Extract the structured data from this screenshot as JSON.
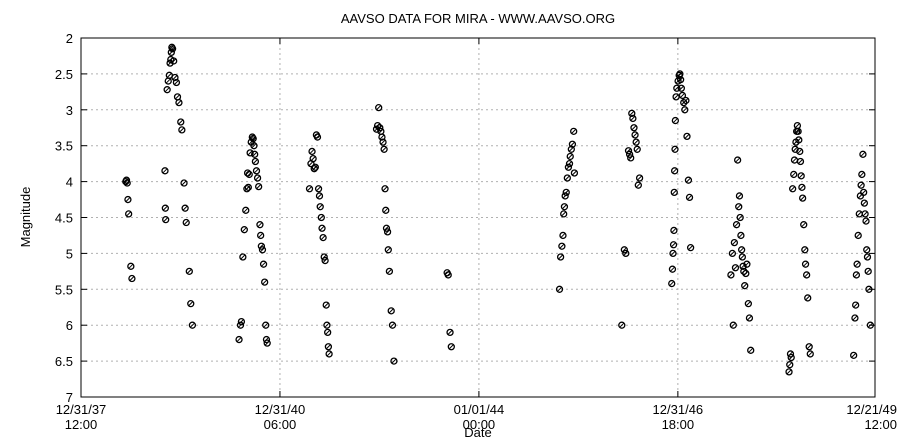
{
  "chart_data": {
    "type": "scatter",
    "title": "AAVSO DATA FOR MIRA - WWW.AAVSO.ORG",
    "xlabel": "Date",
    "ylabel": "Magnitude",
    "y_inverted": true,
    "ylim": [
      7,
      2
    ],
    "yticks": [
      2,
      2.5,
      3,
      3.5,
      4,
      4.5,
      5,
      5.5,
      6,
      6.5,
      7
    ],
    "xlim": [
      "1937-12-31T12:00",
      "1949-12-21T12:00"
    ],
    "xticks": [
      {
        "x": "1937-12-31T12:00",
        "label_top": "12/31/37",
        "label_bottom": "12:00"
      },
      {
        "x": "1940-12-31T06:00",
        "label_top": "12/31/40",
        "label_bottom": "06:00"
      },
      {
        "x": "1944-01-01T00:00",
        "label_top": "01/01/44",
        "label_bottom": "00:00"
      },
      {
        "x": "1946-12-31T18:00",
        "label_top": "12/31/46",
        "label_bottom": "18:00"
      },
      {
        "x": "1949-12-21T12:00",
        "label_top": "12/21/49",
        "label_bottom": "12:00"
      }
    ],
    "grid": true,
    "marker_color": "#000000",
    "series": [
      {
        "points": [
          [
            "1938-09-04",
            4.0
          ],
          [
            "1938-09-08",
            3.98
          ],
          [
            "1938-09-12",
            4.02
          ],
          [
            "1938-09-16",
            4.25
          ],
          [
            "1938-09-20",
            4.45
          ],
          [
            "1938-10-02",
            5.18
          ],
          [
            "1938-10-08",
            5.35
          ],
          [
            "1939-04-08",
            3.85
          ],
          [
            "1939-04-10",
            4.37
          ],
          [
            "1939-04-12",
            4.53
          ],
          [
            "1939-04-20",
            2.72
          ],
          [
            "1939-04-26",
            2.6
          ],
          [
            "1939-05-02",
            2.52
          ],
          [
            "1939-05-06",
            2.35
          ],
          [
            "1939-05-10",
            2.3
          ],
          [
            "1939-05-13",
            2.2
          ],
          [
            "1939-05-16",
            2.13
          ],
          [
            "1939-05-20",
            2.15
          ],
          [
            "1939-05-26",
            2.32
          ],
          [
            "1939-06-02",
            2.55
          ],
          [
            "1939-06-10",
            2.62
          ],
          [
            "1939-06-16",
            2.82
          ],
          [
            "1939-06-24",
            2.9
          ],
          [
            "1939-07-04",
            3.17
          ],
          [
            "1939-07-10",
            3.28
          ],
          [
            "1939-07-22",
            4.02
          ],
          [
            "1939-07-28",
            4.37
          ],
          [
            "1939-08-03",
            4.57
          ],
          [
            "1939-08-20",
            5.25
          ],
          [
            "1939-08-28",
            5.7
          ],
          [
            "1939-09-06",
            6.0
          ],
          [
            "1940-05-20",
            6.2
          ],
          [
            "1940-05-28",
            6.0
          ],
          [
            "1940-06-02",
            5.95
          ],
          [
            "1940-06-10",
            5.05
          ],
          [
            "1940-06-18",
            4.67
          ],
          [
            "1940-06-26",
            4.4
          ],
          [
            "1940-07-02",
            4.1
          ],
          [
            "1940-07-06",
            3.88
          ],
          [
            "1940-07-10",
            4.08
          ],
          [
            "1940-07-15",
            3.9
          ],
          [
            "1940-07-20",
            3.6
          ],
          [
            "1940-07-26",
            3.45
          ],
          [
            "1940-08-01",
            3.38
          ],
          [
            "1940-08-06",
            3.4
          ],
          [
            "1940-08-10",
            3.5
          ],
          [
            "1940-08-14",
            3.62
          ],
          [
            "1940-08-18",
            3.72
          ],
          [
            "1940-08-24",
            3.85
          ],
          [
            "1940-08-30",
            3.95
          ],
          [
            "1940-09-05",
            4.07
          ],
          [
            "1940-09-12",
            4.6
          ],
          [
            "1940-09-16",
            4.75
          ],
          [
            "1940-09-20",
            4.9
          ],
          [
            "1940-09-26",
            4.95
          ],
          [
            "1940-10-02",
            5.15
          ],
          [
            "1940-10-08",
            5.4
          ],
          [
            "1940-10-14",
            6.0
          ],
          [
            "1940-10-18",
            6.2
          ],
          [
            "1940-10-22",
            6.25
          ],
          [
            "1941-06-12",
            4.1
          ],
          [
            "1941-06-20",
            3.75
          ],
          [
            "1941-06-26",
            3.58
          ],
          [
            "1941-07-02",
            3.68
          ],
          [
            "1941-07-08",
            3.82
          ],
          [
            "1941-07-14",
            3.8
          ],
          [
            "1941-07-20",
            3.35
          ],
          [
            "1941-07-26",
            3.38
          ],
          [
            "1941-08-01",
            4.1
          ],
          [
            "1941-08-06",
            4.2
          ],
          [
            "1941-08-10",
            4.35
          ],
          [
            "1941-08-16",
            4.5
          ],
          [
            "1941-08-20",
            4.65
          ],
          [
            "1941-08-26",
            4.78
          ],
          [
            "1941-09-01",
            5.05
          ],
          [
            "1941-09-06",
            5.1
          ],
          [
            "1941-09-12",
            5.72
          ],
          [
            "1941-09-16",
            6.0
          ],
          [
            "1941-09-20",
            6.1
          ],
          [
            "1941-09-24",
            6.3
          ],
          [
            "1941-09-28",
            6.4
          ],
          [
            "1942-06-16",
            3.27
          ],
          [
            "1942-06-22",
            3.22
          ],
          [
            "1942-06-28",
            2.97
          ],
          [
            "1942-07-04",
            3.25
          ],
          [
            "1942-07-10",
            3.3
          ],
          [
            "1942-07-16",
            3.38
          ],
          [
            "1942-07-22",
            3.45
          ],
          [
            "1942-07-28",
            3.55
          ],
          [
            "1942-08-02",
            4.1
          ],
          [
            "1942-08-06",
            4.4
          ],
          [
            "1942-08-10",
            4.65
          ],
          [
            "1942-08-16",
            4.7
          ],
          [
            "1942-08-20",
            4.95
          ],
          [
            "1942-08-26",
            5.25
          ],
          [
            "1942-09-05",
            5.8
          ],
          [
            "1942-09-12",
            6.0
          ],
          [
            "1942-09-20",
            6.5
          ],
          [
            "1943-07-10",
            5.27
          ],
          [
            "1943-07-16",
            5.3
          ],
          [
            "1943-07-26",
            6.1
          ],
          [
            "1943-08-02",
            6.3
          ],
          [
            "1945-03-20",
            5.5
          ],
          [
            "1945-03-26",
            5.05
          ],
          [
            "1945-04-02",
            4.9
          ],
          [
            "1945-04-08",
            4.75
          ],
          [
            "1945-04-12",
            4.45
          ],
          [
            "1945-04-16",
            4.35
          ],
          [
            "1945-04-20",
            4.2
          ],
          [
            "1945-04-26",
            4.15
          ],
          [
            "1945-05-02",
            3.95
          ],
          [
            "1945-05-08",
            3.8
          ],
          [
            "1945-05-14",
            3.75
          ],
          [
            "1945-05-18",
            3.65
          ],
          [
            "1945-05-24",
            3.55
          ],
          [
            "1945-05-30",
            3.48
          ],
          [
            "1945-06-06",
            3.3
          ],
          [
            "1945-06-10",
            3.88
          ],
          [
            "1946-02-26",
            6.0
          ],
          [
            "1946-03-12",
            4.95
          ],
          [
            "1946-03-20",
            5.0
          ],
          [
            "1946-04-04",
            3.57
          ],
          [
            "1946-04-10",
            3.62
          ],
          [
            "1946-04-16",
            3.67
          ],
          [
            "1946-04-22",
            3.05
          ],
          [
            "1946-04-28",
            3.12
          ],
          [
            "1946-05-04",
            3.25
          ],
          [
            "1946-05-10",
            3.35
          ],
          [
            "1946-05-16",
            3.45
          ],
          [
            "1946-05-22",
            3.55
          ],
          [
            "1946-05-28",
            4.05
          ],
          [
            "1946-06-04",
            3.95
          ],
          [
            "1946-11-28",
            5.42
          ],
          [
            "1946-12-02",
            5.22
          ],
          [
            "1946-12-05",
            5.0
          ],
          [
            "1946-12-08",
            4.88
          ],
          [
            "1946-12-10",
            4.68
          ],
          [
            "1946-12-12",
            4.15
          ],
          [
            "1946-12-14",
            3.85
          ],
          [
            "1946-12-16",
            3.55
          ],
          [
            "1946-12-18",
            3.15
          ],
          [
            "1946-12-22",
            2.82
          ],
          [
            "1946-12-26",
            2.7
          ],
          [
            "1947-01-02",
            2.6
          ],
          [
            "1947-01-08",
            2.52
          ],
          [
            "1947-01-12",
            2.5
          ],
          [
            "1947-01-16",
            2.58
          ],
          [
            "1947-01-20",
            2.7
          ],
          [
            "1947-01-26",
            2.8
          ],
          [
            "1947-02-02",
            2.9
          ],
          [
            "1947-02-08",
            3.0
          ],
          [
            "1947-02-14",
            2.87
          ],
          [
            "1947-02-20",
            3.37
          ],
          [
            "1947-02-28",
            3.98
          ],
          [
            "1947-03-06",
            4.22
          ],
          [
            "1947-03-12",
            4.92
          ],
          [
            "1947-10-20",
            5.3
          ],
          [
            "1947-10-28",
            5.0
          ],
          [
            "1947-11-02",
            6.0
          ],
          [
            "1947-11-08",
            4.85
          ],
          [
            "1947-11-14",
            5.2
          ],
          [
            "1947-11-20",
            4.6
          ],
          [
            "1947-11-26",
            3.7
          ],
          [
            "1947-12-02",
            4.35
          ],
          [
            "1947-12-06",
            4.2
          ],
          [
            "1947-12-10",
            4.5
          ],
          [
            "1947-12-14",
            4.75
          ],
          [
            "1947-12-18",
            4.95
          ],
          [
            "1947-12-22",
            5.05
          ],
          [
            "1947-12-26",
            5.18
          ],
          [
            "1947-12-30",
            5.25
          ],
          [
            "1948-01-04",
            5.45
          ],
          [
            "1948-01-10",
            5.28
          ],
          [
            "1948-01-16",
            5.15
          ],
          [
            "1948-01-24",
            5.7
          ],
          [
            "1948-01-30",
            5.9
          ],
          [
            "1948-02-06",
            6.35
          ],
          [
            "1948-09-04",
            6.65
          ],
          [
            "1948-09-08",
            6.55
          ],
          [
            "1948-09-12",
            6.4
          ],
          [
            "1948-09-16",
            6.45
          ],
          [
            "1948-09-24",
            4.1
          ],
          [
            "1948-09-30",
            3.9
          ],
          [
            "1948-10-04",
            3.7
          ],
          [
            "1948-10-08",
            3.55
          ],
          [
            "1948-10-12",
            3.45
          ],
          [
            "1948-10-16",
            3.3
          ],
          [
            "1948-10-20",
            3.22
          ],
          [
            "1948-10-24",
            3.3
          ],
          [
            "1948-10-28",
            3.42
          ],
          [
            "1948-11-02",
            3.58
          ],
          [
            "1948-11-06",
            3.72
          ],
          [
            "1948-11-10",
            3.92
          ],
          [
            "1948-11-14",
            4.08
          ],
          [
            "1948-11-18",
            4.23
          ],
          [
            "1948-11-24",
            4.6
          ],
          [
            "1948-11-30",
            4.95
          ],
          [
            "1948-12-04",
            5.15
          ],
          [
            "1948-12-10",
            5.3
          ],
          [
            "1948-12-16",
            5.62
          ],
          [
            "1948-12-24",
            6.3
          ],
          [
            "1948-12-30",
            6.4
          ],
          [
            "1949-08-26",
            6.42
          ],
          [
            "1949-09-02",
            5.9
          ],
          [
            "1949-09-06",
            5.72
          ],
          [
            "1949-09-10",
            5.3
          ],
          [
            "1949-09-14",
            5.15
          ],
          [
            "1949-09-20",
            4.75
          ],
          [
            "1949-09-26",
            4.45
          ],
          [
            "1949-10-02",
            4.2
          ],
          [
            "1949-10-06",
            4.05
          ],
          [
            "1949-10-10",
            3.9
          ],
          [
            "1949-10-16",
            3.62
          ],
          [
            "1949-10-20",
            4.15
          ],
          [
            "1949-10-24",
            4.3
          ],
          [
            "1949-10-28",
            4.45
          ],
          [
            "1949-11-02",
            4.55
          ],
          [
            "1949-11-06",
            4.95
          ],
          [
            "1949-11-10",
            5.05
          ],
          [
            "1949-11-14",
            5.25
          ],
          [
            "1949-11-18",
            5.5
          ],
          [
            "1949-11-26",
            6.0
          ]
        ]
      }
    ]
  }
}
